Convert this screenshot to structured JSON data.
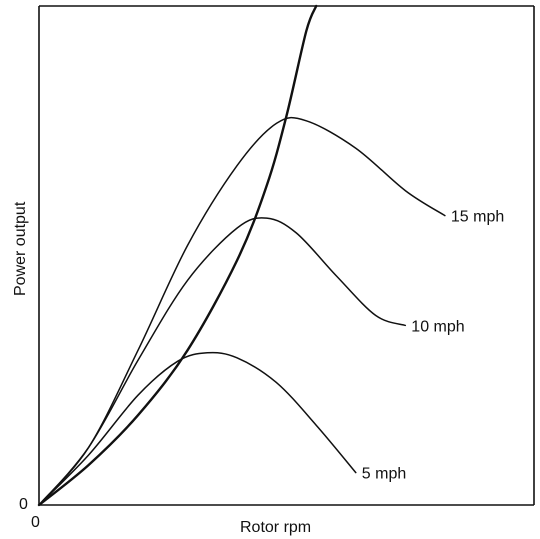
{
  "chart_data": {
    "type": "line",
    "title": "",
    "xlabel": "Rotor rpm",
    "ylabel": "Power output",
    "x_tick_labels": [
      "0"
    ],
    "y_tick_labels": [
      "0"
    ],
    "xlim": [
      0,
      100
    ],
    "ylim": [
      0,
      100
    ],
    "grid": false,
    "series": [
      {
        "name": "5 mph",
        "label_line": true,
        "x": [
          0,
          10,
          20,
          28,
          34,
          40,
          48,
          56,
          64
        ],
        "y": [
          0,
          10,
          22,
          28.8,
          30.5,
          29.5,
          24.5,
          16,
          6.5
        ]
      },
      {
        "name": "10 mph",
        "label_line": true,
        "x": [
          0,
          10,
          20,
          30,
          40,
          46,
          52,
          60,
          68,
          74
        ],
        "y": [
          0,
          11.5,
          29,
          45,
          55.5,
          57.5,
          54.5,
          46,
          38,
          36
        ]
      },
      {
        "name": "15 mph",
        "label_line": true,
        "x": [
          0,
          10,
          20,
          30,
          40,
          48,
          54,
          64,
          74,
          82
        ],
        "y": [
          0,
          11.5,
          31,
          52,
          68,
          76.5,
          77,
          71.5,
          63,
          58
        ]
      },
      {
        "name": "",
        "label_line": false,
        "x": [
          0,
          10,
          20,
          30,
          40,
          46,
          50,
          54,
          56
        ],
        "y": [
          0,
          8,
          18,
          31,
          49,
          64,
          78,
          95,
          100
        ]
      }
    ]
  }
}
